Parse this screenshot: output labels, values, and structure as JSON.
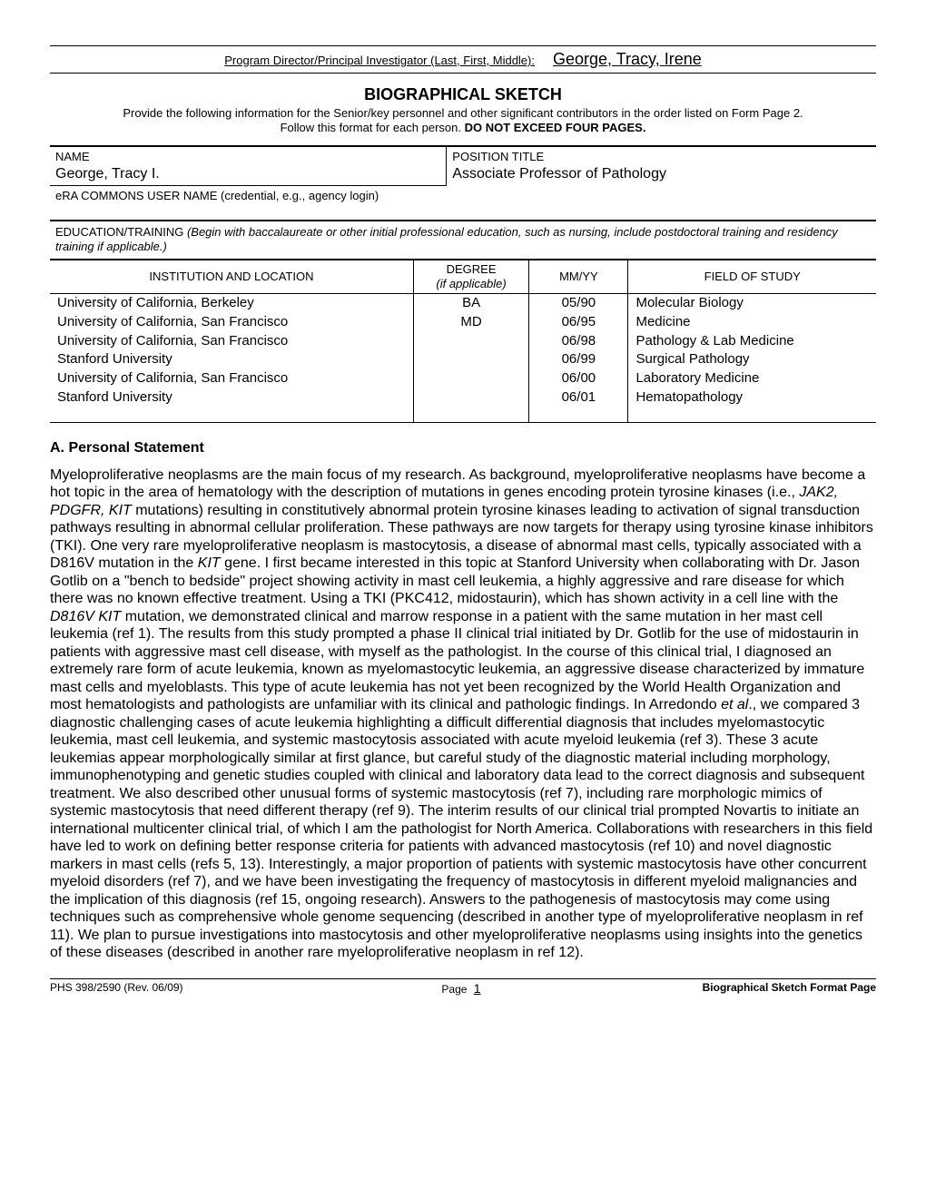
{
  "header": {
    "label": "Program Director/Principal Investigator (Last, First, Middle):",
    "name": "George, Tracy, Irene"
  },
  "title": {
    "main": "BIOGRAPHICAL SKETCH",
    "sub1": "Provide the following information for the Senior/key personnel and other significant contributors in the order listed on Form Page 2.",
    "sub2_prefix": "Follow this format for each person.  ",
    "sub2_bold": "DO NOT EXCEED FOUR PAGES."
  },
  "info": {
    "name_label": "NAME",
    "name_value": "George, Tracy I.",
    "position_label": "POSITION TITLE",
    "position_value": "Associate Professor of Pathology",
    "era_label": "eRA COMMONS USER NAME (credential, e.g., agency login)",
    "era_value": ""
  },
  "edu_instr_prefix": "EDUCATION/TRAINING  ",
  "edu_instr_italic": "(Begin with baccalaureate or other initial professional education, such as nursing, include postdoctoral training and residency training if applicable.)",
  "edu_headers": {
    "inst": "INSTITUTION AND LOCATION",
    "degree1": "DEGREE",
    "degree2": "(if applicable)",
    "date": "MM/YY",
    "field": "FIELD OF STUDY"
  },
  "edu_rows": [
    {
      "inst": "University of California, Berkeley",
      "degree": "BA",
      "date": "05/90",
      "field": "Molecular Biology"
    },
    {
      "inst": "University of California, San Francisco",
      "degree": "MD",
      "date": "06/95",
      "field": "Medicine"
    },
    {
      "inst": "University of California, San Francisco",
      "degree": "",
      "date": "06/98",
      "field": "Pathology & Lab Medicine"
    },
    {
      "inst": "Stanford University",
      "degree": "",
      "date": "06/99",
      "field": "Surgical Pathology"
    },
    {
      "inst": "University of California, San Francisco",
      "degree": "",
      "date": "06/00",
      "field": "Laboratory Medicine"
    },
    {
      "inst": "Stanford University",
      "degree": "",
      "date": "06/01",
      "field": "Hematopathology"
    }
  ],
  "sectionA": {
    "heading": "A.  Personal Statement",
    "p1a": "Myeloproliferative neoplasms are the main focus of my research. As background, myeloproliferative neoplasms have become a hot topic in the area of hematology with the description of mutations in genes encoding protein tyrosine kinases (i.e., ",
    "p1b_it": "JAK2, PDGFR, KIT",
    "p1c": " mutations) resulting in constitutively abnormal protein tyrosine kinases leading to activation of signal transduction pathways resulting in abnormal cellular proliferation. These pathways are now targets for therapy using tyrosine kinase inhibitors (TKI).  One very rare myeloproliferative neoplasm is mastocytosis, a disease of abnormal mast cells, typically associated with a D816V mutation in the ",
    "p1d_it": "KIT",
    "p1e": " gene. I first became interested in this topic at Stanford University when collaborating with Dr. Jason Gotlib on a \"bench to bedside\" project showing activity in mast cell leukemia, a highly aggressive and rare disease for which there was no known effective treatment. Using a TKI (PKC412, midostaurin), which has shown activity in a cell line with the ",
    "p1f_it": "D816V KIT",
    "p1g": " mutation, we demonstrated clinical and marrow response in a patient with the same mutation in her mast cell leukemia (ref 1). The results from this study prompted a phase II clinical trial initiated by Dr. Gotlib for the use of midostaurin in patients with aggressive mast cell disease, with myself as the pathologist. In the course of this clinical trial, I diagnosed an extremely rare form of acute leukemia, known as myelomastocytic leukemia, an aggressive disease characterized by immature mast cells and myeloblasts. This type of acute leukemia has not yet been recognized by the World Health Organization and most hematologists and pathologists are unfamiliar with its clinical and pathologic findings. In Arredondo ",
    "p1h_it": "et al",
    "p1i": "., we compared 3 diagnostic challenging cases of acute leukemia highlighting a difficult differential diagnosis that includes myelomastocytic leukemia, mast cell leukemia, and systemic mastocytosis associated with acute myeloid leukemia (ref 3). These 3 acute leukemias appear morphologically similar at first glance, but careful study of the diagnostic material including morphology, immunophenotyping and genetic studies coupled with clinical and laboratory data lead to the correct diagnosis and subsequent treatment. We also described other unusual forms of systemic mastocytosis (ref 7), including rare morphologic mimics of systemic mastocytosis that need different therapy (ref 9). The interim results of our clinical trial prompted Novartis to initiate an international multicenter clinical trial, of which I am the pathologist for North America. Collaborations with researchers in this field have led to work on defining better response criteria for patients with advanced mastocytosis (ref 10) and novel diagnostic markers in mast cells (refs 5, 13). Interestingly, a major proportion of patients with systemic mastocytosis have other concurrent myeloid disorders (ref 7), and we have been investigating the frequency of mastocytosis in different myeloid malignancies and the implication of this diagnosis (ref 15, ongoing research). Answers to the pathogenesis of mastocytosis may come using techniques such as comprehensive whole genome sequencing (described in another type of myeloproliferative neoplasm in ref 11). We plan to pursue investigations into mastocytosis and other myeloproliferative neoplasms using insights into the genetics of these diseases (described in another rare myeloproliferative neoplasm in ref 12)."
  },
  "footer": {
    "left": "PHS 398/2590 (Rev. 06/09)",
    "center_label": "Page ",
    "center_num": "1",
    "right": "Biographical Sketch Format Page"
  }
}
